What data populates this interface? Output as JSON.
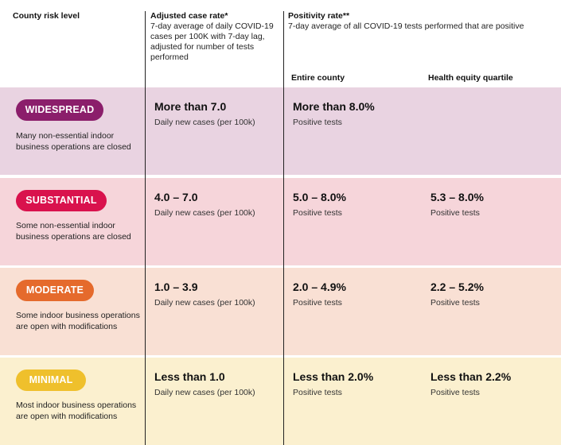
{
  "header": {
    "col0_title": "County risk level",
    "col1_title": "Adjusted case rate*",
    "col1_sub": "7-day average of daily COVID-19 cases per 100K with 7-day lag, adjusted for number of tests performed",
    "col2_title": "Positivity rate**",
    "col2_sub": "7-day average of all COVID-19 tests performed that are positive",
    "sub_entire": "Entire county",
    "sub_equity": "Health equity quartile"
  },
  "rows": [
    {
      "tier": "WIDESPREAD",
      "tier_color": "#8b1e6b",
      "row_bg": "#e9d3e1",
      "desc": "Many non-essential indoor business operations are closed",
      "case_rate": "More than 7.0",
      "case_unit": "Daily new cases (per 100k)",
      "pos_county": "More than 8.0%",
      "pos_county_unit": "Positive tests",
      "pos_equity": "",
      "pos_equity_unit": ""
    },
    {
      "tier": "SUBSTANTIAL",
      "tier_color": "#d9124d",
      "row_bg": "#f6d5da",
      "desc": "Some non-essential indoor business operations are closed",
      "case_rate": "4.0 – 7.0",
      "case_unit": "Daily new cases (per 100k)",
      "pos_county": "5.0 – 8.0%",
      "pos_county_unit": "Positive tests",
      "pos_equity": "5.3 – 8.0%",
      "pos_equity_unit": "Positive tests"
    },
    {
      "tier": "MODERATE",
      "tier_color": "#e56a2c",
      "row_bg": "#f9e0d4",
      "desc": "Some indoor business operations are open with modifications",
      "case_rate": "1.0 – 3.9",
      "case_unit": "Daily new cases (per 100k)",
      "pos_county": "2.0 – 4.9%",
      "pos_county_unit": "Positive tests",
      "pos_equity": "2.2 – 5.2%",
      "pos_equity_unit": "Positive tests"
    },
    {
      "tier": "MINIMAL",
      "tier_color": "#efc02c",
      "row_bg": "#fbf0cf",
      "desc": "Most indoor business operations are open with modifications",
      "case_rate": "Less than 1.0",
      "case_unit": "Daily new cases (per 100k)",
      "pos_county": "Less than 2.0%",
      "pos_county_unit": "Positive tests",
      "pos_equity": "Less than 2.2%",
      "pos_equity_unit": "Positive tests"
    }
  ]
}
